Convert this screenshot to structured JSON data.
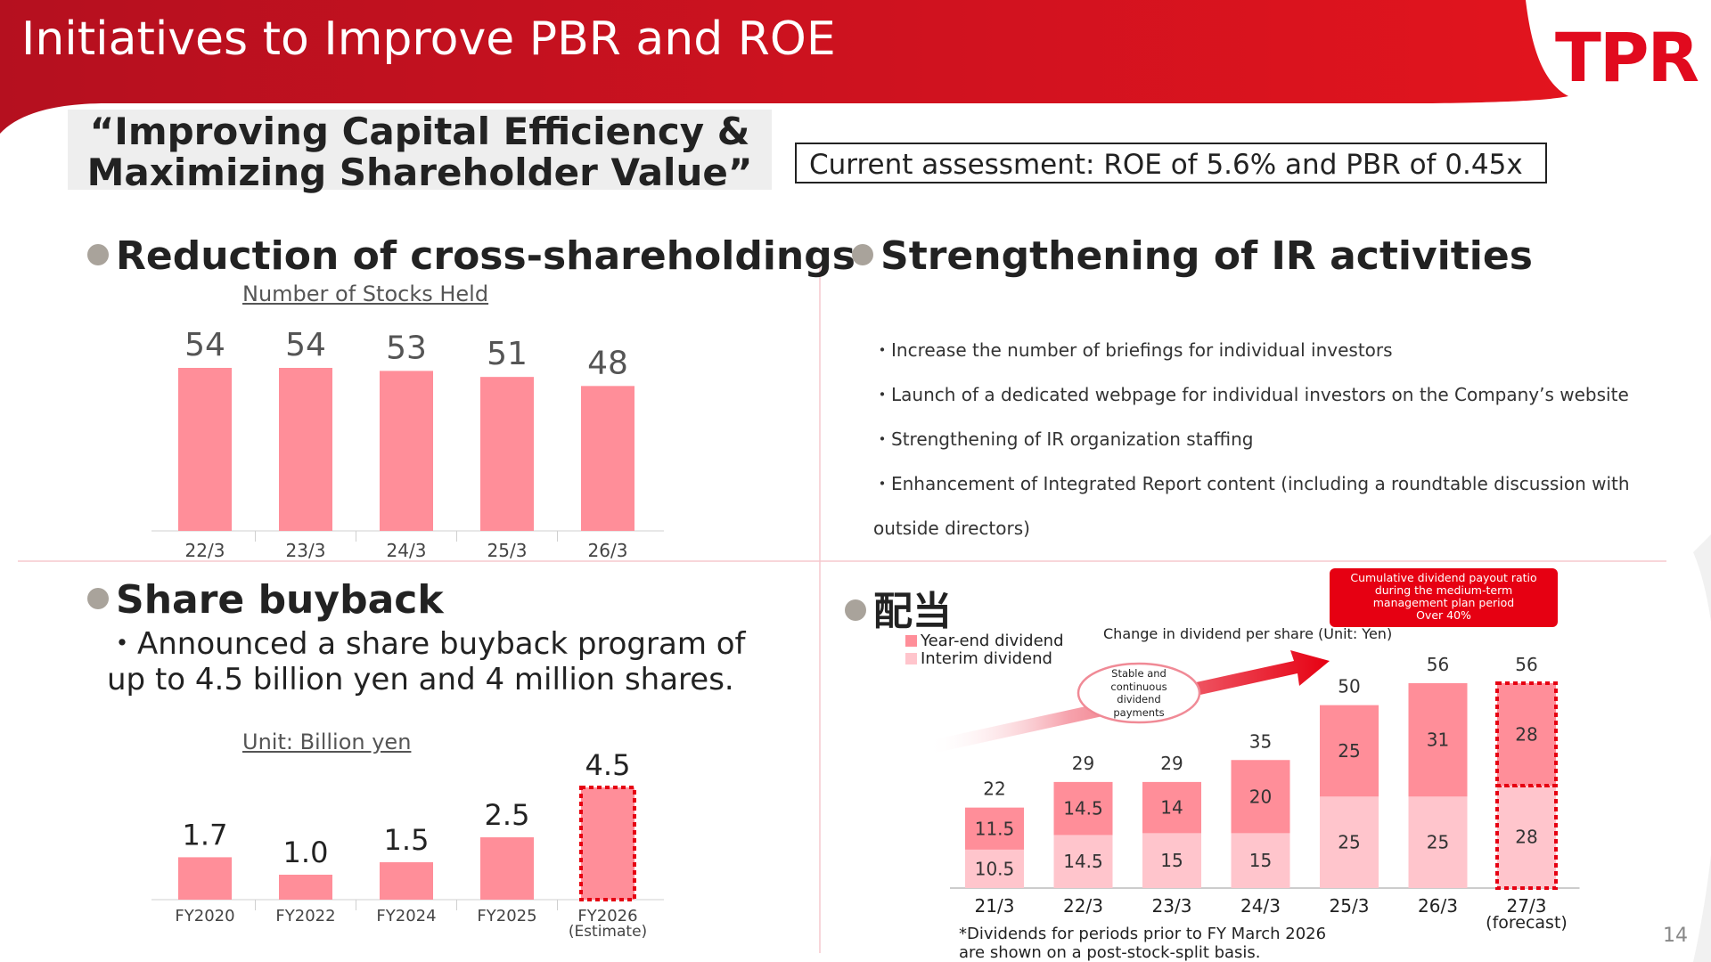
{
  "header": {
    "title": "Initiatives to Improve PBR and ROE",
    "logo_text": "TPR",
    "page_number": "14",
    "colors": {
      "header_red": "#c8102e",
      "bar_pink": "#ff8e99",
      "bar_light_pink": "#ffc5cc",
      "accent_red": "#e60012"
    }
  },
  "slogan": {
    "line1": "“Improving Capital Efficiency &",
    "line2": "Maximizing Shareholder Value”"
  },
  "assessment": "Current assessment: ROE of 5.6% and PBR of 0.45x",
  "cross": {
    "title": "Reduction of cross-shareholdings",
    "subtitle": "Number of Stocks Held"
  },
  "ir": {
    "title": "Strengthening of IR activities",
    "items": [
      "・Increase the number of briefings for individual investors",
      "・Launch of a dedicated webpage for individual investors on the Company’s website",
      "・Strengthening of IR organization staffing",
      "・Enhancement of Integrated Report content (including a roundtable discussion with",
      "outside directors)"
    ]
  },
  "buyback": {
    "title": "Share buyback",
    "text_line1": "・Announced a share buyback program of",
    "text_line2": "up to 4.5 billion yen and 4 million shares.",
    "unit": "Unit: Billion yen"
  },
  "dividend": {
    "title": "配当",
    "unit": "Change in dividend per share (Unit: Yen)",
    "badge": [
      "Cumulative dividend payout ratio",
      "during the medium-term",
      "management plan period",
      "Over 40%"
    ],
    "bubble": [
      "Stable and",
      "continuous",
      "dividend",
      "payments"
    ],
    "legend_year_end": "Year-end dividend",
    "legend_interim": "Interim dividend",
    "note_line1": "*Dividends for periods prior to FY March 2026",
    "note_line2": "are shown on a post-stock-split basis."
  },
  "chart_data": [
    {
      "type": "bar",
      "title": "Number of Stocks Held",
      "categories": [
        "22/3",
        "23/3",
        "24/3",
        "25/3",
        "26/3"
      ],
      "values": [
        54,
        54,
        53,
        51,
        48
      ],
      "ylim": [
        0,
        54
      ]
    },
    {
      "type": "bar",
      "title": "Unit: Billion yen",
      "categories": [
        "FY2020",
        "FY2022",
        "FY2024",
        "FY2025",
        "FY2026"
      ],
      "category_notes": [
        "",
        "",
        "",
        "",
        "(Estimate)"
      ],
      "values": [
        1.7,
        1.0,
        1.5,
        2.5,
        4.5
      ],
      "value_labels": [
        "1.7",
        "1.0",
        "1.5",
        "2.5",
        "4.5"
      ],
      "estimate_index": 4,
      "ylim": [
        0,
        4.5
      ]
    },
    {
      "type": "bar",
      "stacked": true,
      "title": "Change in dividend per share (Unit: Yen)",
      "categories": [
        "21/3",
        "22/3",
        "23/3",
        "24/3",
        "25/3",
        "26/3",
        "27/3"
      ],
      "category_notes": [
        "",
        "",
        "",
        "",
        "",
        "",
        "(forecast)"
      ],
      "forecast_index": 6,
      "ylim": [
        0,
        56
      ],
      "series": [
        {
          "name": "Interim dividend",
          "values": [
            10.5,
            14.5,
            15,
            15,
            25,
            25,
            28
          ],
          "labels": [
            "10.5",
            "14.5",
            "15",
            "15",
            "25",
            "25",
            "28"
          ]
        },
        {
          "name": "Year-end dividend",
          "values": [
            11.5,
            14.5,
            14,
            20,
            25,
            31,
            28
          ],
          "labels": [
            "11.5",
            "14.5",
            "14",
            "20",
            "25",
            "31",
            "28"
          ]
        }
      ],
      "totals": [
        22,
        29,
        29,
        35,
        50,
        56,
        56
      ]
    }
  ]
}
